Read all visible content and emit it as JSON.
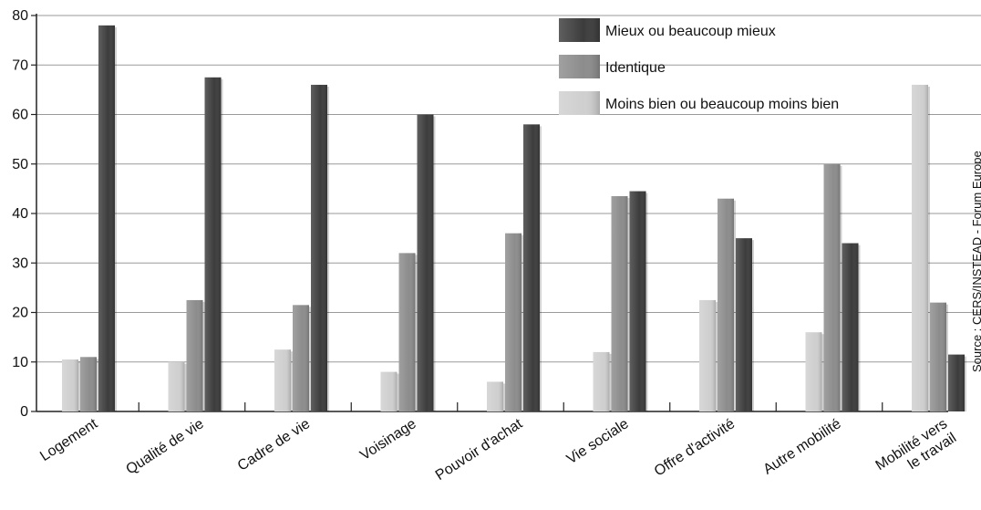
{
  "chart_data": {
    "type": "bar",
    "categories": [
      [
        "Logement"
      ],
      [
        "Qualité de vie"
      ],
      [
        "Cadre de vie"
      ],
      [
        "Voisinage"
      ],
      [
        "Pouvoir d'achat"
      ],
      [
        "Vie sociale"
      ],
      [
        "Offre d'activité"
      ],
      [
        "Autre mobilité"
      ],
      [
        "Mobilité vers",
        "le travail"
      ]
    ],
    "series": [
      {
        "name": "Moins bien ou beaucoup moins bien",
        "color": "#cfcfcf",
        "values": [
          10.5,
          10,
          12.5,
          8,
          6,
          12,
          22.5,
          16,
          66
        ]
      },
      {
        "name": "Identique",
        "color": "#8c8c8c",
        "values": [
          11,
          22.5,
          21.5,
          32,
          36,
          43.5,
          43,
          50,
          22
        ]
      },
      {
        "name": "Mieux ou beaucoup mieux",
        "color": "#3c3c3c",
        "values": [
          78,
          67.5,
          66,
          60,
          58,
          44.5,
          35,
          34,
          11.5
        ]
      }
    ],
    "legend_order": [
      2,
      1,
      0
    ],
    "ylim": [
      0,
      80
    ],
    "yticks": [
      0,
      10,
      20,
      30,
      40,
      50,
      60,
      70,
      80
    ],
    "grid": true,
    "legend_position": "top-right",
    "source_text": "Source : CERS/INSTEAD - Forum Europe"
  }
}
